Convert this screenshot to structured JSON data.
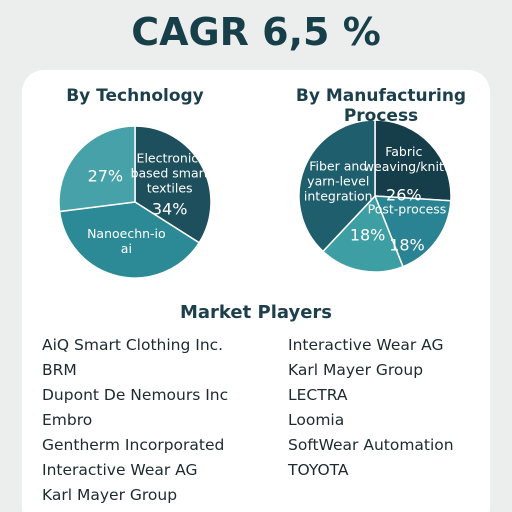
{
  "title": "CAGR 6,5 %",
  "chart_data": [
    {
      "type": "pie",
      "title": "By Technology",
      "categories": [
        "Electronic-based smart textiles",
        "Nanoechn-io ai",
        null
      ],
      "values": [
        34,
        39,
        27
      ],
      "value_labels": [
        "34%",
        null,
        "27%"
      ],
      "colors": [
        "#1d4f5c",
        "#2c8a96",
        "#46a2a8"
      ]
    },
    {
      "type": "pie",
      "title": "By Manufacturing Process",
      "categories": [
        "Fabric weaving/knitting",
        "Post-process",
        null,
        "Fiber and yarn-level integration"
      ],
      "values": [
        26,
        18,
        18,
        38
      ],
      "value_labels": [
        "26%",
        "18%",
        "18%",
        null
      ],
      "colors": [
        "#163d4a",
        "#2a8392",
        "#3d9fa4",
        "#1f5e6d"
      ]
    }
  ],
  "market_players": {
    "title": "Market Players",
    "columns": [
      [
        "AiQ Smart Clothing Inc.",
        "BRM",
        "Dupont De Nemours Inc",
        "Embro",
        "Gentherm Incorporated",
        "Interactive Wear AG",
        "Karl Mayer Group"
      ],
      [
        "Interactive Wear AG",
        "Karl Mayer Group",
        "LECTRA",
        "Loomia",
        "SoftWear Automation",
        "TOYOTA"
      ]
    ]
  }
}
